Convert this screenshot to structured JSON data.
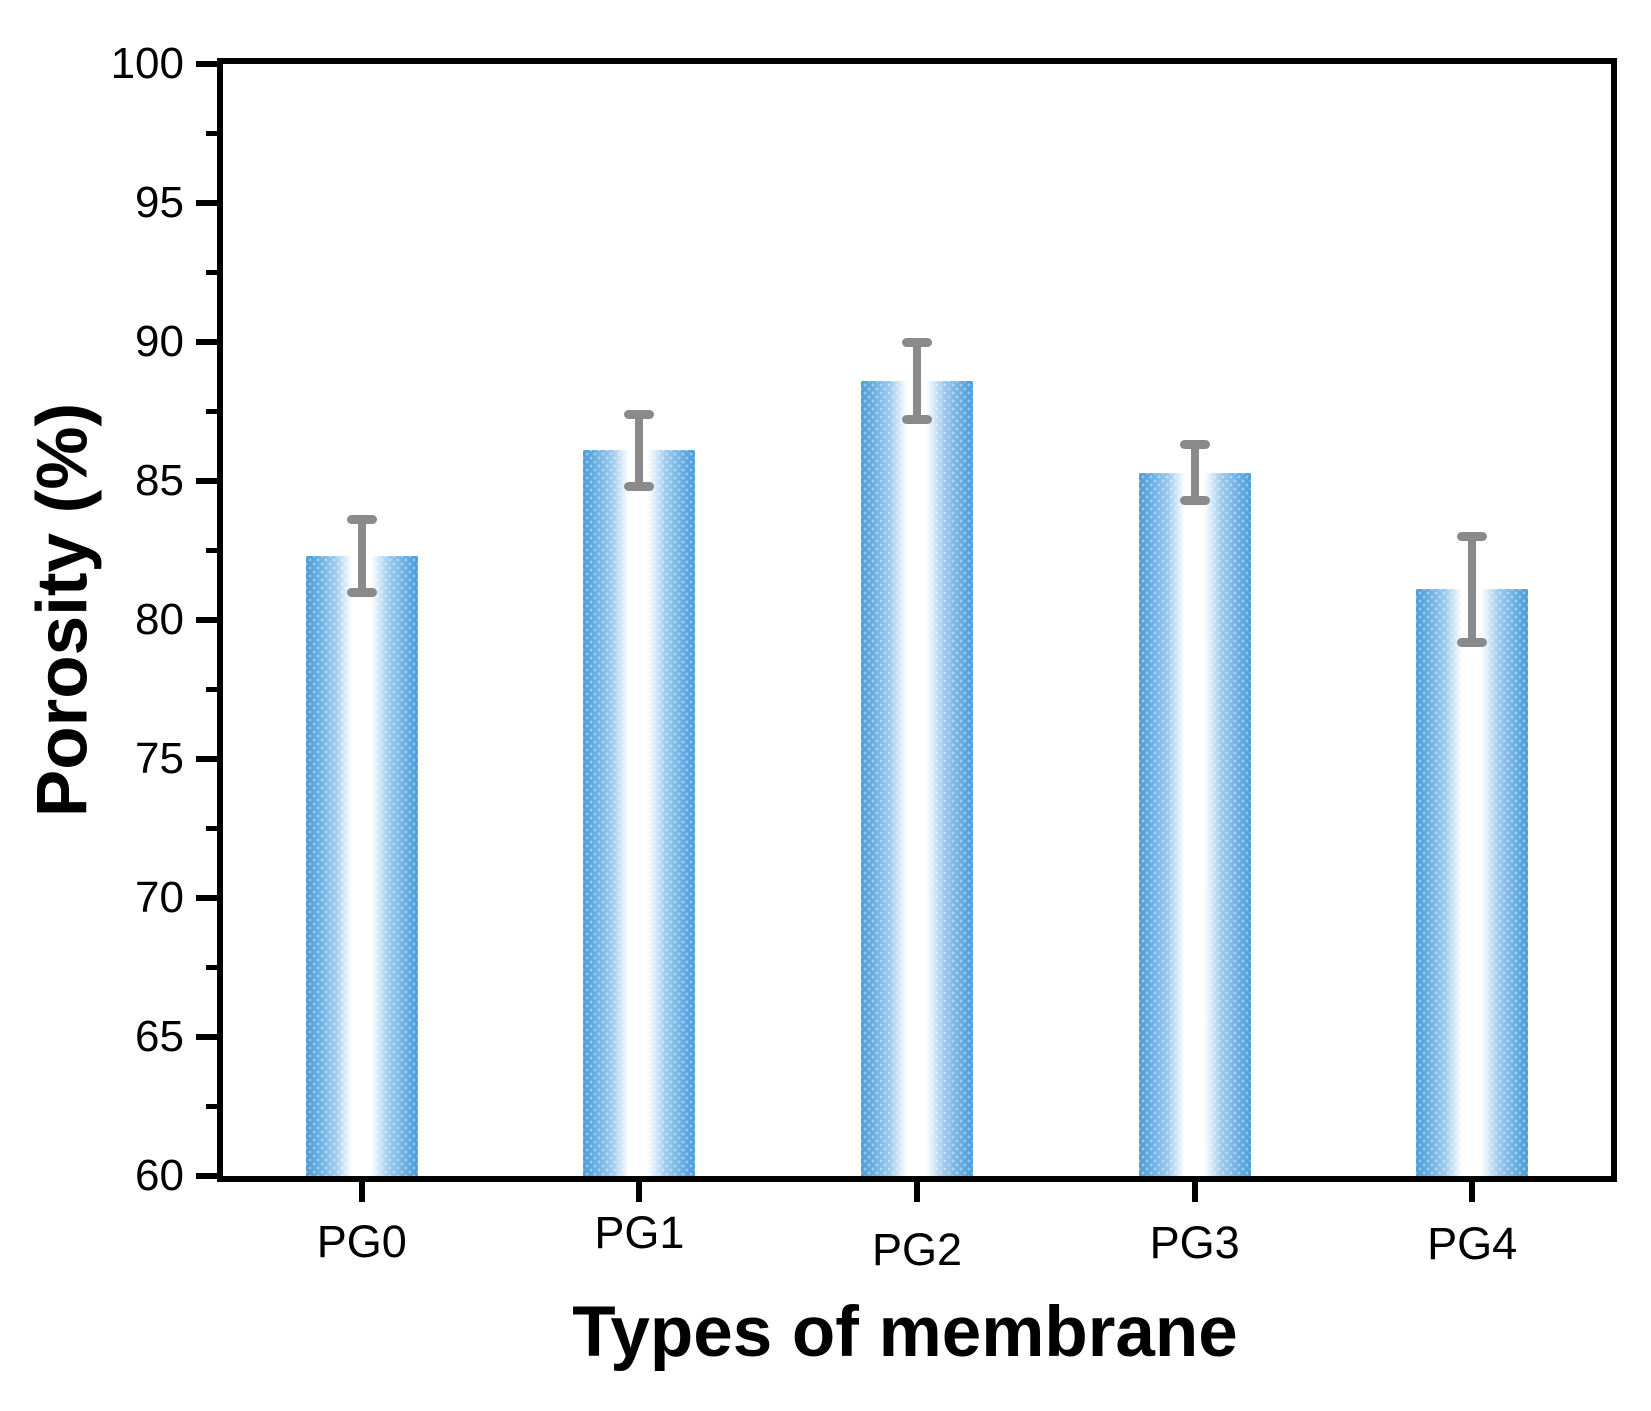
{
  "figure": {
    "background_color": "#FFFFFF",
    "axis_color": "#000000"
  },
  "chart_data": {
    "type": "bar",
    "title": "",
    "xlabel": "Types of membrane",
    "ylabel": "Porosity (%)",
    "categories": [
      "PG0",
      "PG1",
      "PG2",
      "PG3",
      "PG4"
    ],
    "values": [
      82.3,
      86.1,
      88.6,
      85.3,
      81.1
    ],
    "errors": [
      1.3,
      1.3,
      1.4,
      1.0,
      1.9
    ],
    "ylim": [
      60,
      100
    ],
    "y_major_ticks": [
      60,
      65,
      70,
      75,
      80,
      85,
      90,
      95,
      100
    ],
    "y_minor_ticks": [
      62.5,
      67.5,
      72.5,
      77.5,
      82.5,
      87.5,
      92.5,
      97.5
    ],
    "grid": false,
    "legend": false,
    "frame": "full box, ticks outside",
    "bar_fill": {
      "edge_color": "#4D9DDA",
      "center_color": "#FFFFFF",
      "style": "horizontal gradient blue edges to white center with halftone dots"
    },
    "error_bar_color": "#8A8A8A",
    "x_label_dy": [
      0,
      -9,
      8,
      1,
      2
    ]
  }
}
